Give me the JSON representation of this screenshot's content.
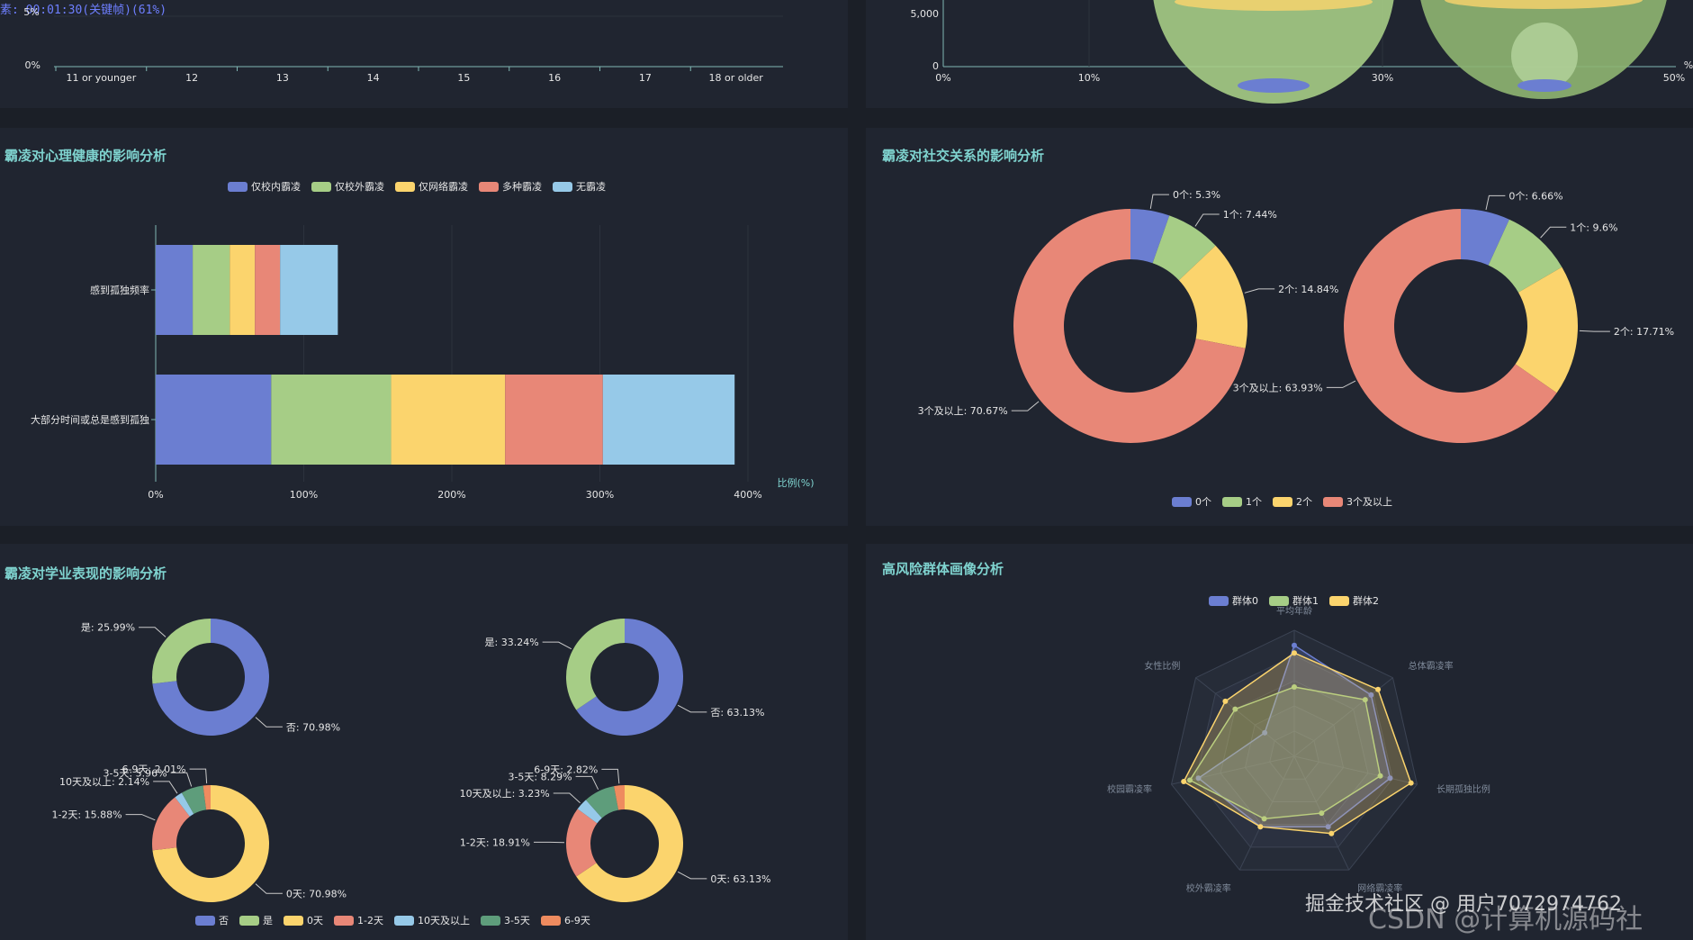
{
  "overlay": {
    "timer": "素: 00:01:30(关键帧)(61%)"
  },
  "colors": {
    "blue": "#6b7ed1",
    "green": "#a6cd86",
    "yellow": "#fbd46d",
    "red": "#e88777",
    "lightblue": "#96c9e8",
    "teal": "#5e9d7b",
    "orange": "#ee8b5f"
  },
  "chart_data": [
    {
      "id": "age",
      "type": "line",
      "title": "",
      "y_ticks": [
        "5%",
        "0%"
      ],
      "categories": [
        "11 or younger",
        "12",
        "13",
        "14",
        "15",
        "16",
        "17",
        "18 or older"
      ]
    },
    {
      "id": "bubble",
      "type": "scatter",
      "title": "",
      "y_ticks": [
        "5,000",
        "0"
      ],
      "x_ticks": [
        "0%",
        "10%",
        "30%",
        "50%"
      ],
      "x_extra": "%"
    },
    {
      "id": "mental",
      "type": "bar",
      "stacked": true,
      "orientation": "horizontal",
      "title": "霸凌对心理健康的影响分析",
      "categories": [
        "感到孤独频率",
        "大部分时间或总是感到孤独"
      ],
      "series": [
        {
          "name": "仅校内霸凌",
          "color": "#6b7ed1",
          "values": [
            25,
            78
          ]
        },
        {
          "name": "仅校外霸凌",
          "color": "#a6cd86",
          "values": [
            25,
            81
          ]
        },
        {
          "name": "仅网络霸凌",
          "color": "#fbd46d",
          "values": [
            17,
            77
          ]
        },
        {
          "name": "多种霸凌",
          "color": "#e88777",
          "values": [
            17,
            66
          ]
        },
        {
          "name": "无霸凌",
          "color": "#96c9e8",
          "values": [
            39,
            89
          ]
        }
      ],
      "xlim": [
        0,
        400
      ],
      "x_ticks": [
        "0%",
        "100%",
        "200%",
        "300%",
        "400%"
      ],
      "xlabel": "比例(%)"
    },
    {
      "id": "social",
      "type": "pie",
      "donut": true,
      "title": "霸凌对社交关系的影响分析",
      "legend": [
        "0个",
        "1个",
        "2个",
        "3个及以上"
      ],
      "pies": [
        {
          "slices": [
            {
              "name": "0个",
              "value": 5.3,
              "label": "0个: 5.3%"
            },
            {
              "name": "1个",
              "value": 7.44,
              "label": "1个: 7.44%"
            },
            {
              "name": "2个",
              "value": 14.84,
              "label": "2个: 14.84%"
            },
            {
              "name": "3个及以上",
              "value": 70.67,
              "label": "3个及以上: 70.67%"
            }
          ]
        },
        {
          "slices": [
            {
              "name": "0个",
              "value": 6.66,
              "label": "0个: 6.66%"
            },
            {
              "name": "1个",
              "value": 9.6,
              "label": "1个: 9.6%"
            },
            {
              "name": "2个",
              "value": 17.71,
              "label": "2个: 17.71%"
            },
            {
              "name": "3个及以上",
              "value": 63.93,
              "label": "3个及以上: 63.93%"
            }
          ]
        }
      ]
    },
    {
      "id": "academic",
      "type": "pie",
      "donut": true,
      "title": "霸凌对学业表现的影响分析",
      "legend": [
        "否",
        "是",
        "0天",
        "1-2天",
        "10天及以上",
        "3-5天",
        "6-9天"
      ],
      "pies": [
        {
          "slices": [
            {
              "name": "否",
              "value": 70.98,
              "label": "否: 70.98%"
            },
            {
              "name": "是",
              "value": 25.99,
              "label": "是: 25.99%"
            }
          ]
        },
        {
          "slices": [
            {
              "name": "否",
              "value": 63.13,
              "label": "否: 63.13%"
            },
            {
              "name": "是",
              "value": 33.24,
              "label": "是: 33.24%"
            }
          ]
        },
        {
          "slices": [
            {
              "name": "0天",
              "value": 70.98,
              "label": "0天: 70.98%"
            },
            {
              "name": "1-2天",
              "value": 15.88,
              "label": "1-2天: 15.88%"
            },
            {
              "name": "10天及以上",
              "value": 2.14,
              "label": "10天及以上: 2.14%"
            },
            {
              "name": "3-5天",
              "value": 5.96,
              "label": "3-5天: 5.96%"
            },
            {
              "name": "6-9天",
              "value": 2.01,
              "label": "6-9天: 2.01%"
            }
          ]
        },
        {
          "slices": [
            {
              "name": "0天",
              "value": 63.13,
              "label": "0天: 63.13%"
            },
            {
              "name": "1-2天",
              "value": 18.91,
              "label": "1-2天: 18.91%"
            },
            {
              "name": "10天及以上",
              "value": 3.23,
              "label": "10天及以上: 3.23%"
            },
            {
              "name": "3-5天",
              "value": 8.29,
              "label": "3-5天: 8.29%"
            },
            {
              "name": "6-9天",
              "value": 2.82,
              "label": "6-9天: 2.82%"
            }
          ]
        }
      ]
    },
    {
      "id": "radar",
      "type": "radar",
      "title": "高风险群体画像分析",
      "indicators": [
        "平均年龄",
        "总体霸凌率",
        "长期孤独比例",
        "网络霸凌率",
        "校外霸凌率",
        "校园霸凌率",
        "女性比例"
      ],
      "series": [
        {
          "name": "群体0",
          "color": "#6b7ed1",
          "values": [
            0.88,
            0.78,
            0.78,
            0.62,
            0.62,
            0.78,
            0.3
          ]
        },
        {
          "name": "群体1",
          "color": "#a6cd86",
          "values": [
            0.55,
            0.72,
            0.7,
            0.5,
            0.55,
            0.85,
            0.6
          ]
        },
        {
          "name": "群体2",
          "color": "#fbd46d",
          "values": [
            0.82,
            0.85,
            0.95,
            0.68,
            0.62,
            0.9,
            0.7
          ]
        }
      ]
    }
  ],
  "watermarks": {
    "juejin": "掘金技术社区 @ 用户7072974762",
    "csdn": "CSDN @计算机源码社"
  }
}
